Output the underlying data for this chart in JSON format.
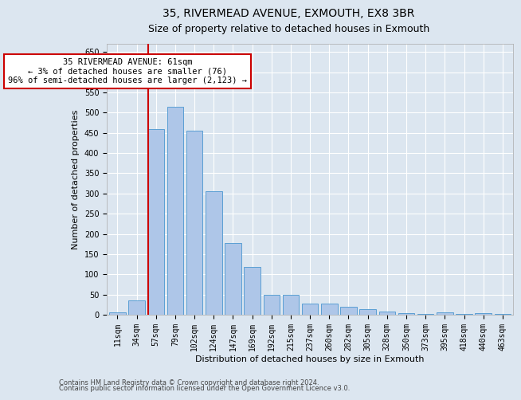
{
  "title": "35, RIVERMEAD AVENUE, EXMOUTH, EX8 3BR",
  "subtitle": "Size of property relative to detached houses in Exmouth",
  "xlabel": "Distribution of detached houses by size in Exmouth",
  "ylabel": "Number of detached properties",
  "categories": [
    "11sqm",
    "34sqm",
    "57sqm",
    "79sqm",
    "102sqm",
    "124sqm",
    "147sqm",
    "169sqm",
    "192sqm",
    "215sqm",
    "237sqm",
    "260sqm",
    "282sqm",
    "305sqm",
    "328sqm",
    "350sqm",
    "373sqm",
    "395sqm",
    "418sqm",
    "440sqm",
    "463sqm"
  ],
  "values": [
    5,
    35,
    460,
    515,
    455,
    305,
    178,
    118,
    50,
    50,
    28,
    28,
    20,
    13,
    7,
    3,
    2,
    6,
    1,
    3,
    2
  ],
  "bar_color": "#aec6e8",
  "bar_edge_color": "#5a9fd4",
  "vline_index": 2,
  "vline_color": "#cc0000",
  "annotation_text": "35 RIVERMEAD AVENUE: 61sqm\n← 3% of detached houses are smaller (76)\n96% of semi-detached houses are larger (2,123) →",
  "annotation_box_color": "#ffffff",
  "annotation_box_edge_color": "#cc0000",
  "ylim": [
    0,
    670
  ],
  "yticks": [
    0,
    50,
    100,
    150,
    200,
    250,
    300,
    350,
    400,
    450,
    500,
    550,
    600,
    650
  ],
  "bg_color": "#dce6f0",
  "plot_bg_color": "#dce6f0",
  "footer_line1": "Contains HM Land Registry data © Crown copyright and database right 2024.",
  "footer_line2": "Contains public sector information licensed under the Open Government Licence v3.0.",
  "title_fontsize": 10,
  "subtitle_fontsize": 9,
  "axis_label_fontsize": 8,
  "tick_fontsize": 7,
  "annotation_fontsize": 7.5,
  "footer_fontsize": 6
}
